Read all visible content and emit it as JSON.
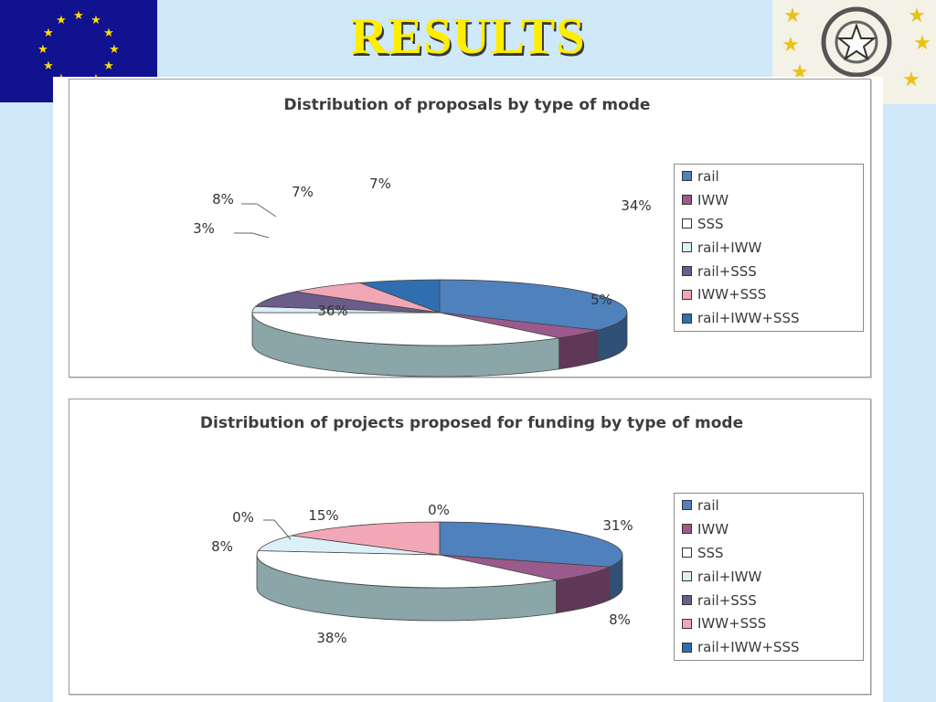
{
  "slide": {
    "title": "RESULTS"
  },
  "colors": {
    "rail": "#4f81bd",
    "IWW": "#9b5a8c",
    "SSS": "#ffffff",
    "rail+IWW": "#ddf0fa",
    "rail+SSS": "#6b5d8a",
    "IWW+SSS": "#f2a7b6",
    "rail+IWW+SSS": "#2f6fb0"
  },
  "chart_data": [
    {
      "type": "pie",
      "title": "Distribution of proposals by type of mode",
      "categories": [
        "rail",
        "IWW",
        "SSS",
        "rail+IWW",
        "rail+SSS",
        "IWW+SSS",
        "rail+IWW+SSS"
      ],
      "values": [
        34,
        5,
        36,
        3,
        8,
        7,
        7
      ],
      "data_labels": [
        "34%",
        "5%",
        "36%",
        "3%",
        "8%",
        "7%",
        "7%"
      ],
      "legend_position": "right",
      "style": "3d-pie"
    },
    {
      "type": "pie",
      "title": "Distribution of projects proposed for funding by type of mode",
      "categories": [
        "rail",
        "IWW",
        "SSS",
        "rail+IWW",
        "rail+SSS",
        "IWW+SSS",
        "rail+IWW+SSS"
      ],
      "values": [
        31,
        8,
        38,
        8,
        0,
        15,
        0
      ],
      "data_labels": [
        "31%",
        "8%",
        "38%",
        "8%",
        "0%",
        "15%",
        "0%"
      ],
      "legend_position": "right",
      "style": "3d-pie"
    }
  ]
}
